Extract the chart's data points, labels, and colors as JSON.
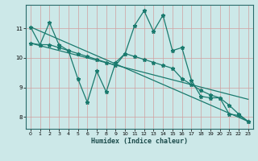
{
  "xlabel": "Humidex (Indice chaleur)",
  "xlim": [
    -0.5,
    23.5
  ],
  "ylim": [
    7.6,
    11.8
  ],
  "yticks": [
    8,
    9,
    10,
    11
  ],
  "xticks": [
    0,
    1,
    2,
    3,
    4,
    5,
    6,
    7,
    8,
    9,
    10,
    11,
    12,
    13,
    14,
    15,
    16,
    17,
    18,
    19,
    20,
    21,
    22,
    23
  ],
  "bg_color": "#cce8e8",
  "line_color": "#1a7a6e",
  "grid_color": "#aacccc",
  "grid_minor_color": "#c0dcdc",
  "line1_x": [
    0,
    1,
    2,
    3,
    4,
    5,
    6,
    7,
    8,
    9,
    10,
    11,
    12,
    13,
    14,
    15,
    16,
    17,
    18,
    19,
    20,
    21,
    22,
    23
  ],
  "line1_y": [
    11.05,
    10.45,
    11.2,
    10.45,
    10.25,
    9.3,
    8.5,
    9.55,
    8.85,
    9.85,
    10.15,
    11.1,
    11.6,
    10.9,
    11.45,
    10.25,
    10.35,
    9.25,
    8.7,
    8.65,
    8.65,
    8.1,
    8.05,
    7.85
  ],
  "line2_x": [
    0,
    1,
    2,
    3,
    4,
    5,
    6,
    7,
    8,
    9,
    10,
    11,
    12,
    13,
    14,
    15,
    16,
    17,
    18,
    19,
    20,
    21,
    22,
    23
  ],
  "line2_y": [
    10.5,
    10.45,
    10.45,
    10.35,
    10.25,
    10.15,
    10.05,
    9.95,
    9.85,
    9.75,
    10.15,
    10.05,
    9.95,
    9.85,
    9.75,
    9.65,
    9.3,
    9.1,
    8.9,
    8.75,
    8.65,
    8.4,
    8.1,
    7.85
  ],
  "line3_x": [
    0,
    23
  ],
  "line3_y": [
    11.05,
    7.85
  ],
  "line4_x": [
    0,
    23
  ],
  "line4_y": [
    10.5,
    8.6
  ]
}
